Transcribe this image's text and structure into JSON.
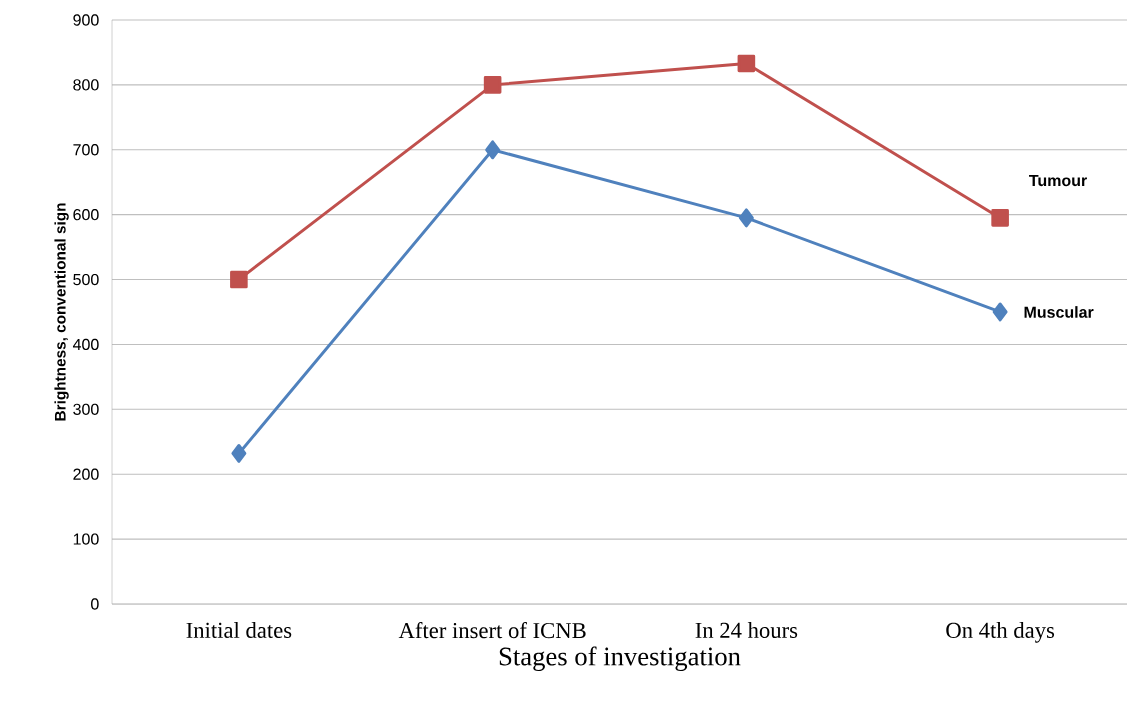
{
  "chart_data": {
    "type": "line",
    "xlabel": "Stages of investigation",
    "ylabel": "Brightness, conventional sign",
    "categories": [
      "Initial dates",
      "After insert of ICNB",
      "In 24 hours",
      "On 4th days"
    ],
    "series": [
      {
        "name": "Tumour",
        "color": "#c0504d",
        "marker": "square",
        "values": [
          500,
          800,
          833,
          595
        ]
      },
      {
        "name": "Muscular",
        "color": "#4f81bd",
        "marker": "diamond",
        "values": [
          232,
          700,
          595,
          450
        ]
      }
    ],
    "ylim": [
      0,
      900
    ],
    "yticks": [
      0,
      100,
      200,
      300,
      400,
      500,
      600,
      700,
      800,
      900
    ],
    "grid": "y",
    "legend": false,
    "line_style": "solid"
  }
}
